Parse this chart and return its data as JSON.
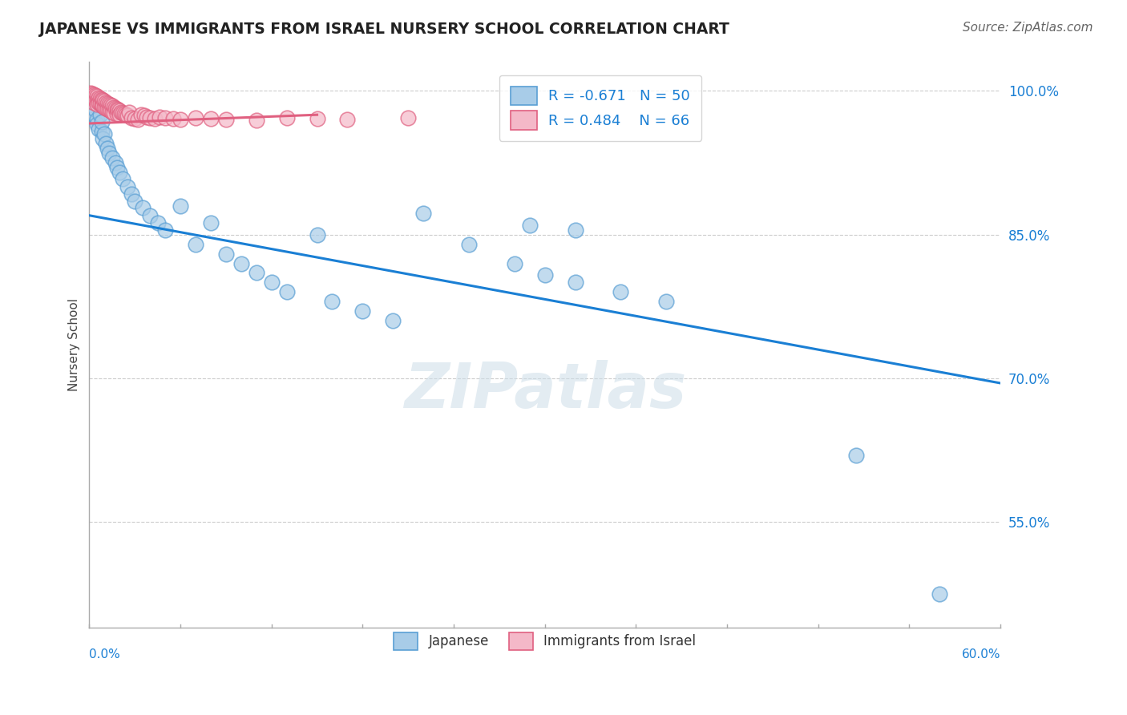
{
  "title": "JAPANESE VS IMMIGRANTS FROM ISRAEL NURSERY SCHOOL CORRELATION CHART",
  "source": "Source: ZipAtlas.com",
  "ylabel": "Nursery School",
  "xlim": [
    0.0,
    0.6
  ],
  "ylim": [
    0.44,
    1.03
  ],
  "blue_R": -0.671,
  "blue_N": 50,
  "pink_R": 0.484,
  "pink_N": 66,
  "blue_color": "#a8cce8",
  "pink_color": "#f4b8c8",
  "blue_edge_color": "#5a9fd4",
  "pink_edge_color": "#e06080",
  "blue_line_color": "#1a7fd4",
  "pink_line_color": "#e06080",
  "watermark_text": "ZIPatlas",
  "ytick_vals": [
    0.55,
    0.7,
    0.85,
    1.0
  ],
  "ytick_labels": [
    "55.0%",
    "70.0%",
    "85.0%",
    "100.0%"
  ],
  "blue_line_x": [
    0.0,
    0.6
  ],
  "blue_line_y": [
    0.87,
    0.695
  ],
  "pink_line_x": [
    0.0,
    0.15
  ],
  "pink_line_y": [
    0.966,
    0.975
  ],
  "blue_scatter_x": [
    0.001,
    0.002,
    0.003,
    0.004,
    0.005,
    0.005,
    0.006,
    0.007,
    0.008,
    0.008,
    0.009,
    0.01,
    0.011,
    0.012,
    0.013,
    0.015,
    0.017,
    0.018,
    0.02,
    0.022,
    0.025,
    0.028,
    0.03,
    0.035,
    0.04,
    0.045,
    0.05,
    0.06,
    0.07,
    0.08,
    0.09,
    0.1,
    0.11,
    0.12,
    0.13,
    0.15,
    0.16,
    0.18,
    0.2,
    0.22,
    0.25,
    0.28,
    0.3,
    0.32,
    0.35,
    0.38,
    0.29,
    0.32,
    0.505,
    0.56
  ],
  "blue_scatter_y": [
    0.99,
    0.985,
    0.975,
    0.98,
    0.97,
    0.965,
    0.96,
    0.975,
    0.958,
    0.968,
    0.95,
    0.955,
    0.945,
    0.94,
    0.935,
    0.93,
    0.925,
    0.92,
    0.915,
    0.908,
    0.9,
    0.892,
    0.885,
    0.878,
    0.87,
    0.862,
    0.855,
    0.88,
    0.84,
    0.862,
    0.83,
    0.82,
    0.81,
    0.8,
    0.79,
    0.85,
    0.78,
    0.77,
    0.76,
    0.872,
    0.84,
    0.82,
    0.808,
    0.8,
    0.79,
    0.78,
    0.86,
    0.855,
    0.62,
    0.475
  ],
  "pink_scatter_x": [
    0.001,
    0.001,
    0.002,
    0.002,
    0.003,
    0.003,
    0.003,
    0.004,
    0.004,
    0.005,
    0.005,
    0.005,
    0.006,
    0.006,
    0.007,
    0.007,
    0.008,
    0.008,
    0.009,
    0.009,
    0.01,
    0.01,
    0.011,
    0.011,
    0.012,
    0.012,
    0.013,
    0.013,
    0.014,
    0.014,
    0.015,
    0.015,
    0.016,
    0.016,
    0.017,
    0.018,
    0.018,
    0.019,
    0.02,
    0.02,
    0.021,
    0.022,
    0.023,
    0.024,
    0.025,
    0.026,
    0.028,
    0.03,
    0.032,
    0.034,
    0.036,
    0.038,
    0.04,
    0.043,
    0.046,
    0.05,
    0.055,
    0.06,
    0.07,
    0.08,
    0.09,
    0.11,
    0.13,
    0.15,
    0.17,
    0.21
  ],
  "pink_scatter_y": [
    0.998,
    0.994,
    0.997,
    0.992,
    0.996,
    0.991,
    0.988,
    0.995,
    0.99,
    0.994,
    0.989,
    0.986,
    0.993,
    0.988,
    0.992,
    0.987,
    0.991,
    0.985,
    0.99,
    0.984,
    0.989,
    0.983,
    0.988,
    0.982,
    0.987,
    0.981,
    0.986,
    0.98,
    0.985,
    0.979,
    0.984,
    0.978,
    0.983,
    0.977,
    0.982,
    0.981,
    0.976,
    0.98,
    0.979,
    0.975,
    0.978,
    0.977,
    0.976,
    0.975,
    0.974,
    0.978,
    0.972,
    0.971,
    0.97,
    0.975,
    0.974,
    0.973,
    0.972,
    0.971,
    0.973,
    0.972,
    0.971,
    0.97,
    0.972,
    0.971,
    0.97,
    0.969,
    0.972,
    0.971,
    0.97,
    0.972
  ]
}
